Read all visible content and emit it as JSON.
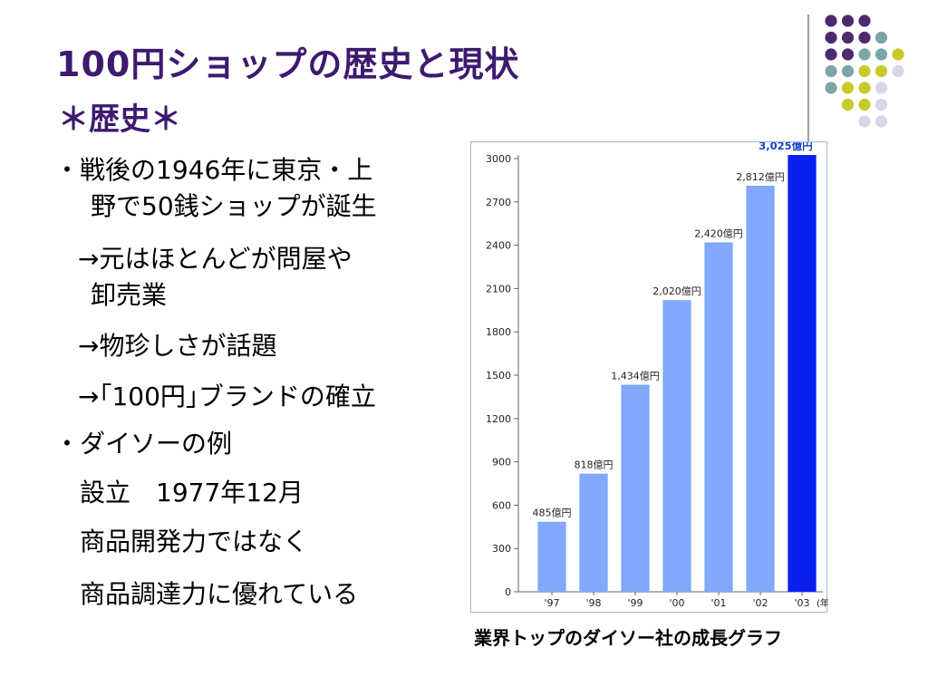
{
  "slide": {
    "title": "100円ショップの歴史と現状",
    "subtitle": "＊歴史＊",
    "caption": "業界トップのダイソー社の成長グラフ",
    "lines": [
      "・戦後の1946年に東京・上",
      "野で50銭ショップが誕生",
      "→元はほとんどが問屋や",
      "卸売業",
      "→物珍しさが話題",
      "→｢100円｣ブランドの確立",
      "・ダイソーの例",
      "設立　1977年12月",
      "商品開発力ではなく",
      "商品調達力に優れている"
    ]
  },
  "colors": {
    "title": "#3d1a6e",
    "bar": "#82a8fb",
    "bar_highlight": "#0a1ff0",
    "label_highlight": "#1a3fd0",
    "dot_purple": "#4b2a6e",
    "dot_teal": "#7aa6a6",
    "dot_yellow": "#c9c92a",
    "dot_lavender": "#d7d7e6"
  },
  "decoration": {
    "dot_rows": [
      [
        "purple",
        "purple",
        "purple"
      ],
      [
        "purple",
        "purple",
        "purple",
        "teal"
      ],
      [
        "purple",
        "purple",
        "teal",
        "teal",
        "yellow"
      ],
      [
        "teal",
        "teal",
        "yellow",
        "yellow",
        "lavender"
      ],
      [
        "teal",
        "yellow",
        "yellow",
        "lavender"
      ],
      [
        "yellow",
        "yellow",
        "lavender"
      ],
      [
        "lavender",
        "lavender"
      ]
    ]
  },
  "chart_data": {
    "type": "bar",
    "categories": [
      "'97",
      "'98",
      "'99",
      "'00",
      "'01",
      "'02",
      "'03"
    ],
    "values": [
      485,
      818,
      1434,
      2020,
      2420,
      2812,
      3025
    ],
    "data_labels": [
      "485億円",
      "818億円",
      "1,434億円",
      "2,020億円",
      "2,420億円",
      "2,812億円",
      "3,025億円"
    ],
    "highlight_index": 6,
    "x_unit_label": "(年度)",
    "yticks": [
      0,
      300,
      600,
      900,
      1200,
      1500,
      1800,
      2100,
      2400,
      2700,
      3000
    ],
    "ylim": [
      0,
      3000
    ],
    "grid": false,
    "title": "",
    "xlabel": "",
    "ylabel": ""
  }
}
